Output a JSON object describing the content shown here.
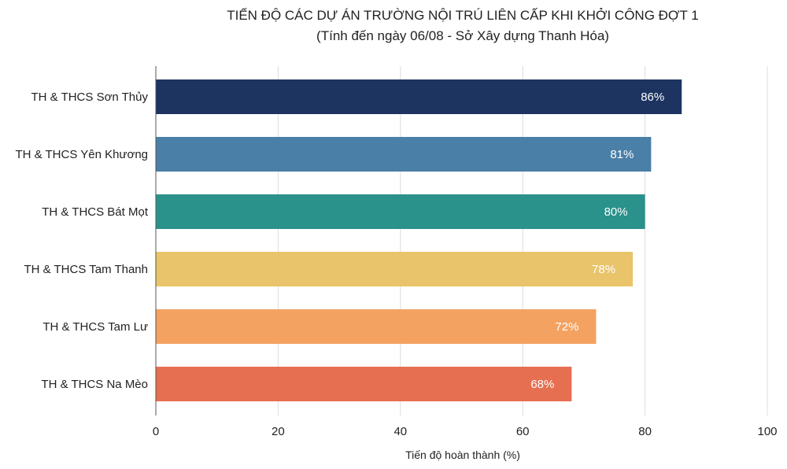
{
  "chart_data": {
    "type": "bar",
    "orientation": "horizontal",
    "title": "TIẾN ĐỘ CÁC DỰ ÁN TRƯỜNG NỘI TRÚ LIÊN CẤP KHI KHỞI CÔNG ĐỢT 1",
    "subtitle": "(Tính đến ngày 06/08 - Sở Xây dựng Thanh Hóa)",
    "xlabel": "Tiến độ hoàn thành (%)",
    "ylabel": "",
    "xlim": [
      0,
      100
    ],
    "xticks": [
      "0",
      "20",
      "40",
      "60",
      "80",
      "100"
    ],
    "grid": true,
    "categories": [
      "TH & THCS Sơn Thủy",
      "TH & THCS Yên Khương",
      "TH & THCS Bát Mọt",
      "TH & THCS Tam Thanh",
      "TH & THCS Tam Lư",
      "TH & THCS Na Mèo"
    ],
    "values": [
      86,
      81,
      80,
      78,
      72,
      68
    ],
    "value_labels": [
      "86%",
      "81%",
      "80%",
      "78%",
      "72%",
      "68%"
    ],
    "colors": [
      "#1d3461",
      "#4a7fa7",
      "#2a918b",
      "#e9c46a",
      "#f4a261",
      "#e76f51"
    ]
  }
}
